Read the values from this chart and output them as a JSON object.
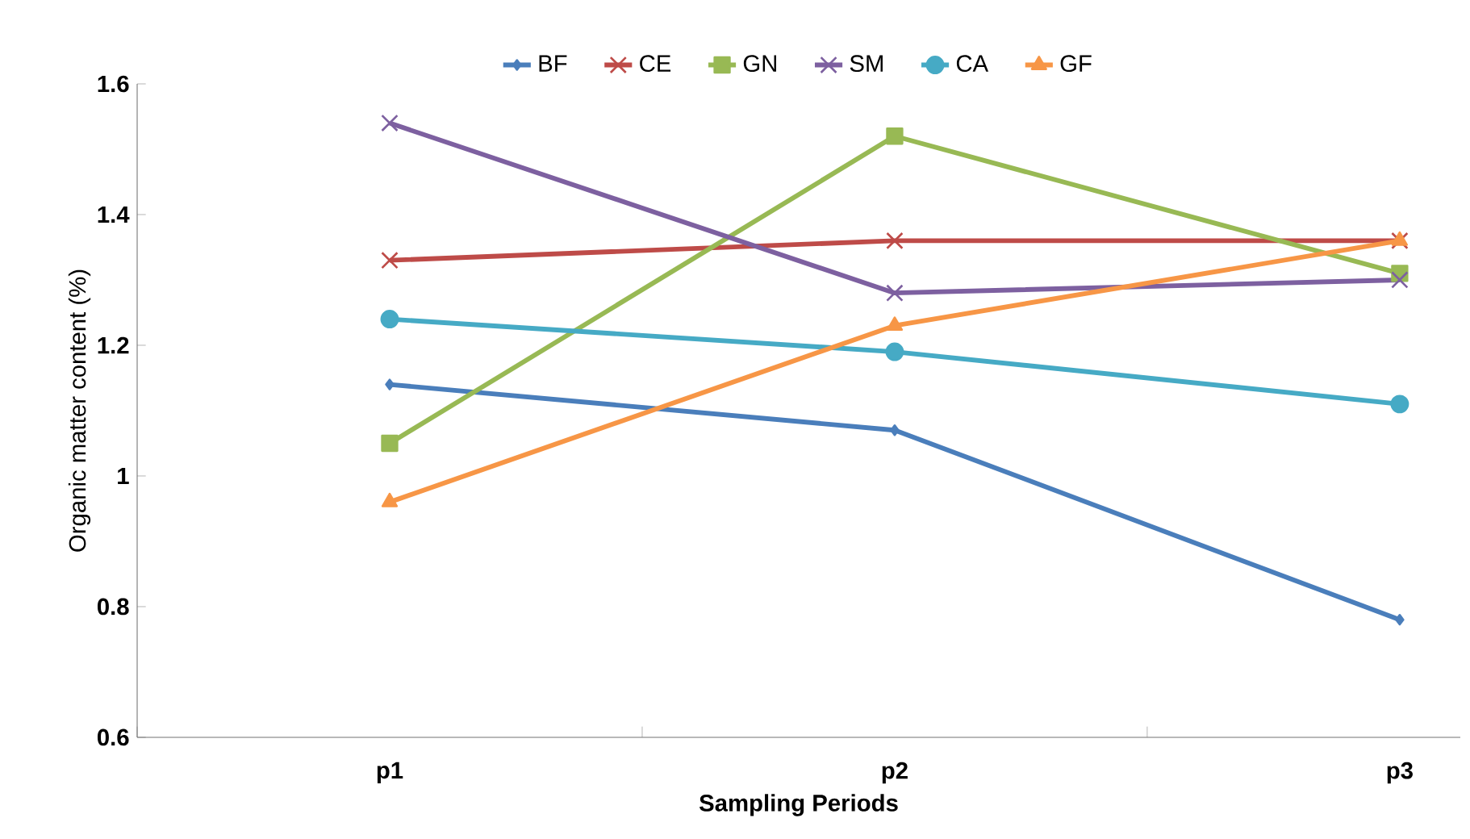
{
  "chart_data": {
    "type": "line",
    "xlabel": "Sampling Periods",
    "ylabel": "Organic matter content (%)",
    "categories": [
      "p1",
      "p2",
      "p3"
    ],
    "series": [
      {
        "name": "BF",
        "color": "#4a7ebb",
        "marker": "diamond",
        "values": [
          1.14,
          1.07,
          0.78
        ]
      },
      {
        "name": "CE",
        "color": "#be4b48",
        "marker": "cross",
        "values": [
          1.33,
          1.36,
          1.36
        ]
      },
      {
        "name": "GN",
        "color": "#98b954",
        "marker": "square",
        "values": [
          1.05,
          1.52,
          1.31
        ]
      },
      {
        "name": "SM",
        "color": "#7d60a0",
        "marker": "cross",
        "values": [
          1.54,
          1.28,
          1.3
        ]
      },
      {
        "name": "CA",
        "color": "#46aac5",
        "marker": "circle",
        "values": [
          1.24,
          1.19,
          1.11
        ]
      },
      {
        "name": "GF",
        "color": "#f79646",
        "marker": "triangle",
        "values": [
          0.96,
          1.23,
          1.36
        ]
      }
    ],
    "ylim": [
      0.6,
      1.6
    ],
    "yticks": [
      0.6,
      0.8,
      1,
      1.2,
      1.4,
      1.6
    ],
    "grid": false,
    "legend": "top",
    "line_style": "solid"
  }
}
